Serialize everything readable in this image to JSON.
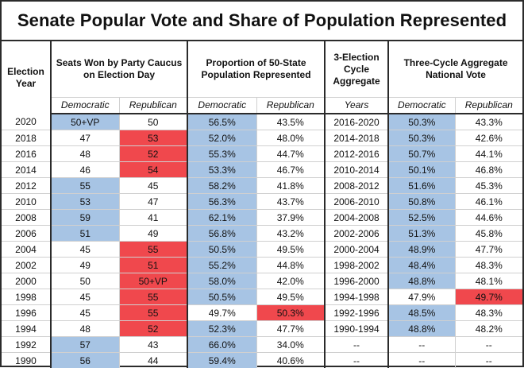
{
  "title": "Senate Popular Vote and Share of Population Represented",
  "headers": {
    "year": "Election Year",
    "seats": "Seats Won by Party Caucus on Election Day",
    "proportion": "Proportion of 50-State Population Represented",
    "cycle": "3-Election Cycle Aggregate",
    "aggregate": "Three-Cycle Aggregate National Vote",
    "democratic": "Democratic",
    "republican": "Republican",
    "years": "Years"
  },
  "colors": {
    "democratic_fill": "#a7c4e4",
    "republican_fill": "#f0484d"
  },
  "rows": [
    {
      "year": "2020",
      "seats_d": "50+VP",
      "seats_r": "50",
      "pop_d": "56.5%",
      "pop_r": "43.5%",
      "cycle": "2016-2020",
      "agg_d": "50.3%",
      "agg_r": "43.3%",
      "hl": [
        "seats_d",
        "pop_d",
        "agg_d"
      ]
    },
    {
      "year": "2018",
      "seats_d": "47",
      "seats_r": "53",
      "pop_d": "52.0%",
      "pop_r": "48.0%",
      "cycle": "2014-2018",
      "agg_d": "50.3%",
      "agg_r": "42.6%",
      "hl": [
        "seats_r",
        "pop_d",
        "agg_d"
      ]
    },
    {
      "year": "2016",
      "seats_d": "48",
      "seats_r": "52",
      "pop_d": "55.3%",
      "pop_r": "44.7%",
      "cycle": "2012-2016",
      "agg_d": "50.7%",
      "agg_r": "44.1%",
      "hl": [
        "seats_r",
        "pop_d",
        "agg_d"
      ]
    },
    {
      "year": "2014",
      "seats_d": "46",
      "seats_r": "54",
      "pop_d": "53.3%",
      "pop_r": "46.7%",
      "cycle": "2010-2014",
      "agg_d": "50.1%",
      "agg_r": "46.8%",
      "hl": [
        "seats_r",
        "pop_d",
        "agg_d"
      ]
    },
    {
      "year": "2012",
      "seats_d": "55",
      "seats_r": "45",
      "pop_d": "58.2%",
      "pop_r": "41.8%",
      "cycle": "2008-2012",
      "agg_d": "51.6%",
      "agg_r": "45.3%",
      "hl": [
        "seats_d",
        "pop_d",
        "agg_d"
      ]
    },
    {
      "year": "2010",
      "seats_d": "53",
      "seats_r": "47",
      "pop_d": "56.3%",
      "pop_r": "43.7%",
      "cycle": "2006-2010",
      "agg_d": "50.8%",
      "agg_r": "46.1%",
      "hl": [
        "seats_d",
        "pop_d",
        "agg_d"
      ]
    },
    {
      "year": "2008",
      "seats_d": "59",
      "seats_r": "41",
      "pop_d": "62.1%",
      "pop_r": "37.9%",
      "cycle": "2004-2008",
      "agg_d": "52.5%",
      "agg_r": "44.6%",
      "hl": [
        "seats_d",
        "pop_d",
        "agg_d"
      ]
    },
    {
      "year": "2006",
      "seats_d": "51",
      "seats_r": "49",
      "pop_d": "56.8%",
      "pop_r": "43.2%",
      "cycle": "2002-2006",
      "agg_d": "51.3%",
      "agg_r": "45.8%",
      "hl": [
        "seats_d",
        "pop_d",
        "agg_d"
      ]
    },
    {
      "year": "2004",
      "seats_d": "45",
      "seats_r": "55",
      "pop_d": "50.5%",
      "pop_r": "49.5%",
      "cycle": "2000-2004",
      "agg_d": "48.9%",
      "agg_r": "47.7%",
      "hl": [
        "seats_r",
        "pop_d",
        "agg_d"
      ]
    },
    {
      "year": "2002",
      "seats_d": "49",
      "seats_r": "51",
      "pop_d": "55.2%",
      "pop_r": "44.8%",
      "cycle": "1998-2002",
      "agg_d": "48.4%",
      "agg_r": "48.3%",
      "hl": [
        "seats_r",
        "pop_d",
        "agg_d"
      ]
    },
    {
      "year": "2000",
      "seats_d": "50",
      "seats_r": "50+VP",
      "pop_d": "58.0%",
      "pop_r": "42.0%",
      "cycle": "1996-2000",
      "agg_d": "48.8%",
      "agg_r": "48.1%",
      "hl": [
        "seats_r",
        "pop_d",
        "agg_d"
      ]
    },
    {
      "year": "1998",
      "seats_d": "45",
      "seats_r": "55",
      "pop_d": "50.5%",
      "pop_r": "49.5%",
      "cycle": "1994-1998",
      "agg_d": "47.9%",
      "agg_r": "49.7%",
      "hl": [
        "seats_r",
        "pop_d",
        "agg_r"
      ]
    },
    {
      "year": "1996",
      "seats_d": "45",
      "seats_r": "55",
      "pop_d": "49.7%",
      "pop_r": "50.3%",
      "cycle": "1992-1996",
      "agg_d": "48.5%",
      "agg_r": "48.3%",
      "hl": [
        "seats_r",
        "pop_r",
        "agg_d"
      ]
    },
    {
      "year": "1994",
      "seats_d": "48",
      "seats_r": "52",
      "pop_d": "52.3%",
      "pop_r": "47.7%",
      "cycle": "1990-1994",
      "agg_d": "48.8%",
      "agg_r": "48.2%",
      "hl": [
        "seats_r",
        "pop_d",
        "agg_d"
      ]
    },
    {
      "year": "1992",
      "seats_d": "57",
      "seats_r": "43",
      "pop_d": "66.0%",
      "pop_r": "34.0%",
      "cycle": "--",
      "agg_d": "--",
      "agg_r": "--",
      "hl": [
        "seats_d",
        "pop_d"
      ]
    },
    {
      "year": "1990",
      "seats_d": "56",
      "seats_r": "44",
      "pop_d": "59.4%",
      "pop_r": "40.6%",
      "cycle": "--",
      "agg_d": "--",
      "agg_r": "--",
      "hl": [
        "seats_d",
        "pop_d"
      ]
    }
  ]
}
